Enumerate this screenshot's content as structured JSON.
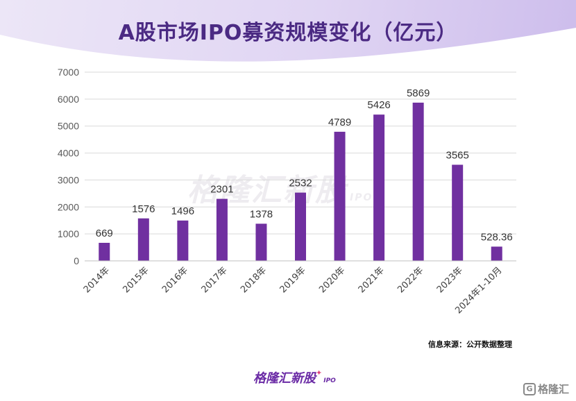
{
  "title": "A股市场IPO募资规模变化（亿元）",
  "watermark": {
    "text": "格隆汇新股",
    "sub": "IPO"
  },
  "source": "信息来源：公开数据整理",
  "brand": {
    "text": "格隆汇新股",
    "sub": "IPO"
  },
  "corner_logo": {
    "icon": "G",
    "text": "格隆汇"
  },
  "colors": {
    "bar": "#7030a0",
    "title": "#4b2a83",
    "grid": "#d9d9d9",
    "axis_text": "#595959"
  },
  "chart_data": {
    "type": "bar",
    "categories": [
      "2014年",
      "2015年",
      "2016年",
      "2017年",
      "2018年",
      "2019年",
      "2020年",
      "2021年",
      "2022年",
      "2023年",
      "2024年1-10月"
    ],
    "values": [
      669,
      1576,
      1496,
      2301,
      1378,
      2532,
      4789,
      5426,
      5869,
      3565,
      528.36
    ],
    "data_labels": [
      "669",
      "1576",
      "1496",
      "2301",
      "1378",
      "2532",
      "4789",
      "5426",
      "5869",
      "3565",
      "528.36"
    ],
    "ylim": [
      0,
      7000
    ],
    "yticks": [
      "0",
      "1000",
      "2000",
      "3000",
      "4000",
      "5000",
      "6000",
      "7000"
    ],
    "grid": true
  }
}
